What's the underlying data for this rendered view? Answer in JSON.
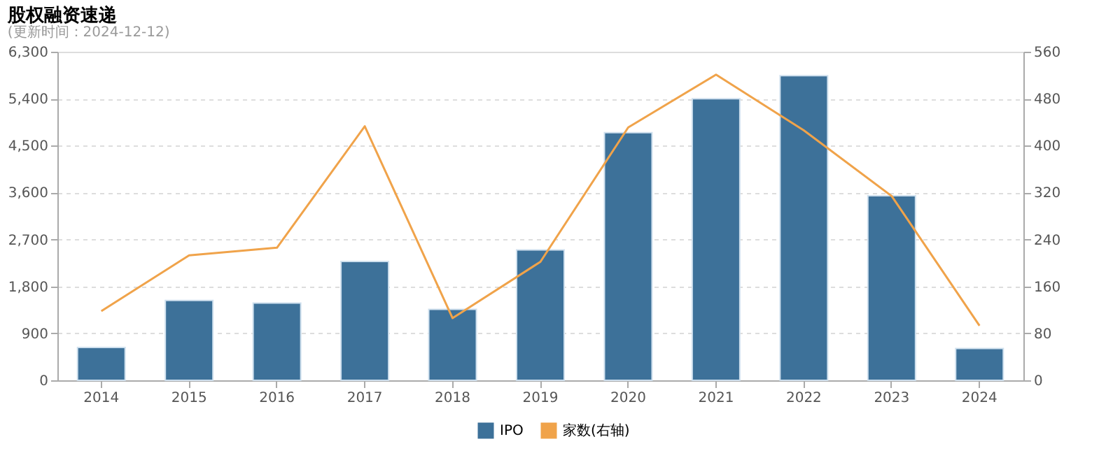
{
  "chart_data": {
    "type": "bar",
    "title": "股权融资速递",
    "subtitle": "(更新时间：2024-12-12)",
    "categories": [
      "2014",
      "2015",
      "2016",
      "2017",
      "2018",
      "2019",
      "2020",
      "2021",
      "2022",
      "2023",
      "2024"
    ],
    "series": [
      {
        "name": "IPO",
        "color": "#3d7199",
        "values": [
          630,
          1530,
          1480,
          2280,
          1360,
          2500,
          4750,
          5400,
          5840,
          3540,
          610
        ]
      },
      {
        "name": "家数(右轴)",
        "type": "line",
        "axis": "y2",
        "color": "#f0a34a",
        "values": [
          118,
          213,
          226,
          433,
          106,
          202,
          431,
          521,
          426,
          314,
          93
        ]
      }
    ],
    "ylim": [
      0,
      6300
    ],
    "yticks": [
      0,
      900,
      {
        "value": 1800,
        "label": "1,800"
      },
      {
        "value": 2700,
        "label": "2,700"
      },
      {
        "value": 3600,
        "label": "3,600"
      },
      {
        "value": 4500,
        "label": "4,500"
      },
      {
        "value": 5400,
        "label": "5,400"
      },
      {
        "value": 6300,
        "label": "6,300"
      }
    ],
    "y2lim": [
      0,
      560
    ],
    "y2ticks": [
      0,
      80,
      160,
      240,
      320,
      400,
      480,
      560
    ],
    "grid": "y",
    "legend": "bottom"
  }
}
